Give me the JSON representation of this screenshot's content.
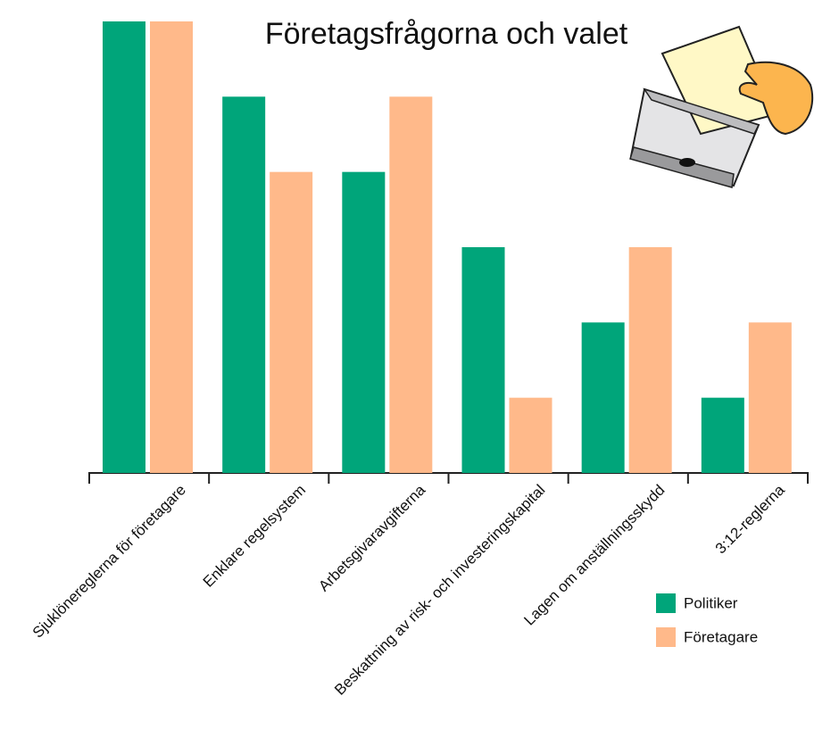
{
  "chart_data": {
    "type": "bar",
    "title": "Företagsfrågorna och valet",
    "categories": [
      "Sjuklönereglerna för företagare",
      "Enklare regelsystem",
      "Arbetsgivaravgifterna",
      "Beskattning av risk- och investeringskapital",
      "Lagen om anställningsskydd",
      "3:12-reglerna"
    ],
    "series": [
      {
        "name": "Politiker",
        "color": "#00a57a",
        "values": [
          6,
          5,
          4,
          3,
          2,
          1
        ]
      },
      {
        "name": "Företagare",
        "color": "#ffb98a",
        "values": [
          6,
          4,
          5,
          1,
          3,
          2
        ]
      }
    ]
  }
}
